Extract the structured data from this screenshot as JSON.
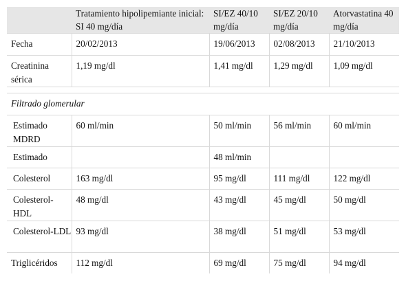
{
  "header": {
    "col1": "",
    "col2": "Tratamiento hipolipemiante inicial: SI 40 mg/día",
    "col3": "SI/EZ 40/10 mg/día",
    "col4": "SI/EZ 20/10 mg/día",
    "col5": "Atorvastatina 40 mg/día"
  },
  "rows": {
    "fecha": [
      "Fecha",
      "20/02/2013",
      "19/06/2013",
      "02/08/2013",
      "21/10/2013"
    ],
    "creatinina": [
      "Creatinina sérica",
      "1,19 mg/dl",
      "1,41 mg/dl",
      "1,29 mg/dl",
      "1,09 mg/dl"
    ],
    "section": "Filtrado glomerular",
    "mdrd": [
      "Estimado MDRD",
      "60 ml/min",
      "50 ml/min",
      "56 ml/min",
      "60 ml/min"
    ],
    "estimado": [
      "Estimado",
      "",
      "48 ml/min",
      "",
      ""
    ],
    "colesterol": [
      "Colesterol",
      "163 mg/dl",
      "95 mg/dl",
      "111 mg/dl",
      "122 mg/dl"
    ],
    "hdl": [
      "Colesterol-HDL",
      "48 mg/dl",
      "43 mg/dl",
      "45 mg/dl",
      "50 mg/dl"
    ],
    "ldl": [
      "Colesterol-LDL",
      "93 mg/dl",
      "38 mg/dl",
      "51 mg/dl",
      "53 mg/dl"
    ],
    "trig": [
      "Triglicéridos",
      "112 mg/dl",
      "69 mg/dl",
      "75 mg/dl",
      "94 mg/dl"
    ]
  }
}
